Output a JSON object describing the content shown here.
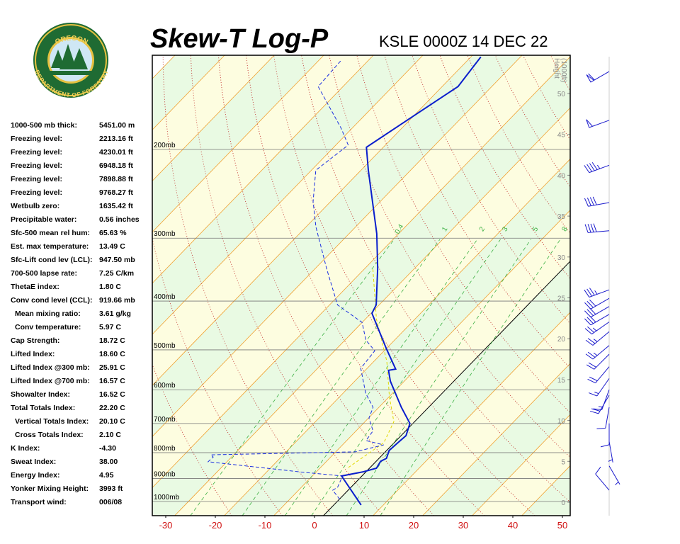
{
  "logo": {
    "top": "OREGON",
    "bottom": "DEPARTMENT OF FORESTRY"
  },
  "header": {
    "title": "Skew-T Log-P",
    "station": "KSLE 0000Z 14 DEC 22"
  },
  "indices": [
    {
      "label": "1000-500 mb thick:",
      "value": "5451.00 m"
    },
    {
      "label": "Freezing level:",
      "value": "2213.16 ft"
    },
    {
      "label": "Freezing level:",
      "value": "4230.01 ft"
    },
    {
      "label": "Freezing level:",
      "value": "6948.18 ft"
    },
    {
      "label": "Freezing level:",
      "value": "7898.88 ft"
    },
    {
      "label": "Freezing level:",
      "value": "9768.27 ft"
    },
    {
      "label": "Wetbulb zero:",
      "value": "1635.42 ft"
    },
    {
      "label": "Precipitable water:",
      "value": "0.56 inches"
    },
    {
      "label": "Sfc-500 mean rel hum:",
      "value": "65.63 %"
    },
    {
      "label": "Est. max temperature:",
      "value": "13.49 C"
    },
    {
      "label": "Sfc-Lift cond lev (LCL):",
      "value": "947.50 mb"
    },
    {
      "label": "700-500 lapse rate:",
      "value": "7.25 C/km"
    },
    {
      "label": "ThetaE index:",
      "value": "1.80 C"
    },
    {
      "label": "Conv cond level (CCL):",
      "value": "919.66 mb"
    },
    {
      "label": "Mean mixing ratio:",
      "value": "3.61 g/kg"
    },
    {
      "label": "Conv temperature:",
      "value": "5.97 C"
    },
    {
      "label": "Cap Strength:",
      "value": "18.72 C"
    },
    {
      "label": "Lifted Index:",
      "value": "18.60 C"
    },
    {
      "label": "Lifted Index @300 mb:",
      "value": "25.91 C"
    },
    {
      "label": "Lifted Index @700 mb:",
      "value": "16.57 C"
    },
    {
      "label": "Showalter Index:",
      "value": "16.52 C"
    },
    {
      "label": "Total Totals Index:",
      "value": "22.20 C"
    },
    {
      "label": "Vertical Totals Index:",
      "value": "20.10 C"
    },
    {
      "label": "Cross Totals Index:",
      "value": "2.10 C"
    },
    {
      "label": "K Index:",
      "value": "-4.30"
    },
    {
      "label": "Sweat Index:",
      "value": "38.00"
    },
    {
      "label": "Energy Index:",
      "value": "4.95"
    },
    {
      "label": "Yonker Mixing Height:",
      "value": "3993 ft"
    },
    {
      "label": "Transport wind:",
      "value": "006/08"
    }
  ],
  "chart_data": {
    "type": "skewt",
    "xlim": [
      -30,
      50
    ],
    "xticks": [
      -30,
      -20,
      -10,
      0,
      10,
      20,
      30,
      40,
      50
    ],
    "ylim": [
      1067,
      130
    ],
    "log_scale": true,
    "pressure_levels": [
      {
        "value": 200,
        "label": "200mb"
      },
      {
        "value": 300,
        "label": "300mb"
      },
      {
        "value": 400,
        "label": "400mb"
      },
      {
        "value": 500,
        "label": "500mb"
      },
      {
        "value": 600,
        "label": "600mb"
      },
      {
        "value": 700,
        "label": "700mb"
      },
      {
        "value": 800,
        "label": "800mb"
      },
      {
        "value": 900,
        "label": "900mb"
      },
      {
        "value": 1000,
        "label": "1000mb"
      }
    ],
    "height_title": [
      "Height",
      "(1000ft)"
    ],
    "height_lim": [
      0,
      50
    ],
    "height_ticks": [
      0,
      5,
      10,
      15,
      20,
      25,
      30,
      35,
      40,
      45,
      50
    ],
    "isotherms": [
      -120,
      -110,
      -100,
      -90,
      -80,
      -70,
      -60,
      -50,
      -40,
      -30,
      -20,
      -10,
      0,
      10,
      20,
      30,
      40,
      50
    ],
    "highlight_isotherm": 0,
    "band_colors": [
      "#e9fae3",
      "#fdfde0"
    ],
    "isotherm_color": "#f0a030",
    "dry_adiabats": [
      250,
      260,
      270,
      280,
      290,
      300,
      310,
      320,
      330,
      340,
      350,
      360,
      370,
      380,
      390,
      400,
      410,
      420,
      430,
      440,
      450,
      460,
      470
    ],
    "dry_adiabat_color": "#c0302a",
    "mixing_ratios": [
      0.4,
      1,
      2,
      3,
      5,
      8
    ],
    "mixing_ratio_color": "#3cb043",
    "temperature": {
      "color": "#0a1ecc",
      "pressure": [
        1016,
        890,
        873,
        859,
        832,
        821,
        792,
        769,
        740,
        700,
        650,
        577,
        549,
        546,
        497,
        423,
        407,
        344,
        294,
        220,
        198,
        173,
        150,
        131
      ],
      "values": [
        5.5,
        -4.1,
        -0.5,
        1.4,
        0.9,
        1.5,
        0.5,
        0.7,
        1.0,
        -0.6,
        -5.5,
        -12.8,
        -15.3,
        -14.1,
        -20.0,
        -29.8,
        -30.6,
        -37.5,
        -44.4,
        -58.5,
        -63.4,
        -60.2,
        -56.8,
        -58.0
      ]
    },
    "dewpoint": {
      "color": "#1a2ee0",
      "pressure": [
        990,
        950,
        937,
        890,
        876,
        834,
        816,
        808,
        797,
        772,
        757,
        724,
        683,
        650,
        610,
        544,
        502,
        478,
        441,
        407,
        346,
        285,
        254,
        220,
        196,
        181,
        150,
        133
      ],
      "values": [
        0.1,
        -3.1,
        -2.7,
        -3.9,
        -12.0,
        -33.8,
        -33.7,
        -34.6,
        -6.1,
        -1.7,
        -6.1,
        -6.6,
        -9.9,
        -11.2,
        -15.4,
        -21.3,
        -21.9,
        -25.8,
        -30.0,
        -38.4,
        -47.5,
        -58.0,
        -63.5,
        -69.1,
        -67.5,
        -72.4,
        -85.0,
        -85.5
      ]
    },
    "parcel": {
      "color": "#e0d800",
      "pressure": [
        856,
        764,
        694,
        619,
        527,
        434,
        346
      ],
      "values": [
        -4.4,
        -2.1,
        -4.2,
        -10.0,
        -17.4,
        -27.8,
        -38.2
      ]
    },
    "wind_color": "#1a1acc",
    "winds": [
      {
        "pressure": 140,
        "direction": 240,
        "speed": 60
      },
      {
        "pressure": 175,
        "direction": 250,
        "speed": 50
      },
      {
        "pressure": 215,
        "direction": 250,
        "speed": 45
      },
      {
        "pressure": 255,
        "direction": 260,
        "speed": 40
      },
      {
        "pressure": 290,
        "direction": 265,
        "speed": 40
      },
      {
        "pressure": 380,
        "direction": 250,
        "speed": 35
      },
      {
        "pressure": 395,
        "direction": 240,
        "speed": 30
      },
      {
        "pressure": 410,
        "direction": 240,
        "speed": 30
      },
      {
        "pressure": 425,
        "direction": 240,
        "speed": 30
      },
      {
        "pressure": 440,
        "direction": 235,
        "speed": 25
      },
      {
        "pressure": 460,
        "direction": 230,
        "speed": 25
      },
      {
        "pressure": 490,
        "direction": 230,
        "speed": 25
      },
      {
        "pressure": 510,
        "direction": 225,
        "speed": 20
      },
      {
        "pressure": 540,
        "direction": 220,
        "speed": 20
      },
      {
        "pressure": 570,
        "direction": 215,
        "speed": 15
      },
      {
        "pressure": 600,
        "direction": 200,
        "speed": 15
      },
      {
        "pressure": 615,
        "direction": 210,
        "speed": 20
      },
      {
        "pressure": 650,
        "direction": 190,
        "speed": 10
      },
      {
        "pressure": 700,
        "direction": 180,
        "speed": 10
      },
      {
        "pressure": 760,
        "direction": 170,
        "speed": 5
      },
      {
        "pressure": 850,
        "direction": 150,
        "speed": 5
      },
      {
        "pressure": 950,
        "direction": 320,
        "speed": 10
      }
    ]
  }
}
